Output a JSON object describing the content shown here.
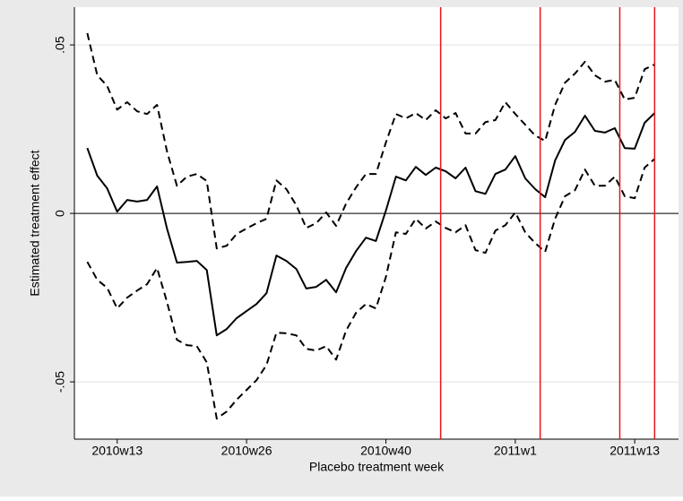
{
  "chart_data": {
    "type": "line",
    "xlabel": "Placebo treatment week",
    "ylabel": "Estimated treatment effect",
    "x": [
      2609,
      2610,
      2611,
      2612,
      2613,
      2614,
      2615,
      2616,
      2617,
      2618,
      2619,
      2620,
      2621,
      2622,
      2623,
      2624,
      2625,
      2626,
      2627,
      2628,
      2629,
      2630,
      2631,
      2632,
      2633,
      2634,
      2635,
      2636,
      2637,
      2638,
      2639,
      2640,
      2641,
      2642,
      2643,
      2644,
      2645,
      2646,
      2647,
      2648,
      2649,
      2650,
      2651,
      2652,
      2653,
      2654,
      2655,
      2656,
      2657,
      2658,
      2659,
      2660,
      2661,
      2662,
      2663,
      2664,
      2665,
      2666
    ],
    "series": [
      {
        "color": "#000000",
        "dash": false,
        "values": [
          0.0194,
          0.0112,
          0.0074,
          0.0005,
          0.004,
          0.0035,
          0.004,
          0.008,
          -0.0045,
          -0.0146,
          -0.0144,
          -0.0141,
          -0.0168,
          -0.0362,
          -0.0343,
          -0.0311,
          -0.029,
          -0.0269,
          -0.0237,
          -0.0125,
          -0.0141,
          -0.0165,
          -0.0223,
          -0.0218,
          -0.0197,
          -0.0234,
          -0.0162,
          -0.0112,
          -0.0072,
          -0.0082,
          0.0008,
          0.0109,
          0.0098,
          0.0138,
          0.0114,
          0.0136,
          0.0125,
          0.0104,
          0.0136,
          0.0066,
          0.0058,
          0.0117,
          0.013,
          0.017,
          0.0104,
          0.0072,
          0.0048,
          0.0157,
          0.0218,
          0.0242,
          0.029,
          0.0245,
          0.024,
          0.0253,
          0.0194,
          0.0192,
          0.0269,
          0.0298
        ]
      },
      {
        "color": "#000000",
        "dash": true,
        "values": [
          0.0535,
          0.041,
          0.0378,
          0.0308,
          0.033,
          0.0303,
          0.0295,
          0.0322,
          0.0184,
          0.0082,
          0.0109,
          0.0117,
          0.0096,
          -0.0104,
          -0.0096,
          -0.0061,
          -0.0045,
          -0.0029,
          -0.0016,
          0.0098,
          0.0072,
          0.0024,
          -0.0043,
          -0.0029,
          0.0003,
          -0.0037,
          0.0029,
          0.0077,
          0.0117,
          0.0117,
          0.021,
          0.0295,
          0.0282,
          0.0298,
          0.0277,
          0.0306,
          0.0282,
          0.0298,
          0.0237,
          0.0237,
          0.0271,
          0.0277,
          0.033,
          0.0295,
          0.0263,
          0.0231,
          0.0215,
          0.0322,
          0.0388,
          0.0415,
          0.045,
          0.041,
          0.0391,
          0.0396,
          0.0338,
          0.0343,
          0.0428,
          0.0442
        ]
      },
      {
        "color": "#000000",
        "dash": true,
        "values": [
          -0.0144,
          -0.0197,
          -0.0221,
          -0.0282,
          -0.025,
          -0.0229,
          -0.021,
          -0.0162,
          -0.0263,
          -0.0375,
          -0.0391,
          -0.0394,
          -0.0442,
          -0.0609,
          -0.0588,
          -0.0553,
          -0.0524,
          -0.0495,
          -0.045,
          -0.0354,
          -0.0356,
          -0.0362,
          -0.0402,
          -0.0407,
          -0.0394,
          -0.0434,
          -0.0348,
          -0.0295,
          -0.0269,
          -0.0282,
          -0.0189,
          -0.0056,
          -0.0061,
          -0.0016,
          -0.0045,
          -0.0024,
          -0.0043,
          -0.0056,
          -0.0035,
          -0.0109,
          -0.0117,
          -0.0051,
          -0.0035,
          0.0003,
          -0.0056,
          -0.0088,
          -0.0114,
          -0.0016,
          0.0051,
          0.0069,
          0.013,
          0.0082,
          0.0082,
          0.0109,
          0.0051,
          0.0045,
          0.0136,
          0.0162
        ]
      }
    ],
    "xlim": [
      2607.7,
      2668.4
    ],
    "ylim": [
      -0.067,
      0.0612
    ],
    "xticks": [
      {
        "value": 2612,
        "label": "2010w13"
      },
      {
        "value": 2625,
        "label": "2010w26"
      },
      {
        "value": 2639,
        "label": "2010w40"
      },
      {
        "value": 2652,
        "label": "2011w1"
      },
      {
        "value": 2664,
        "label": "2011w13"
      }
    ],
    "yticks": [
      {
        "value": -0.05,
        "label": "-.05"
      },
      0,
      {
        "value": 0.05,
        "label": ".05"
      }
    ],
    "grid": true,
    "yline": 0,
    "xlines": [
      2644.5,
      2654.5,
      2662.5,
      2666
    ],
    "xline_color": "#e8141c"
  }
}
